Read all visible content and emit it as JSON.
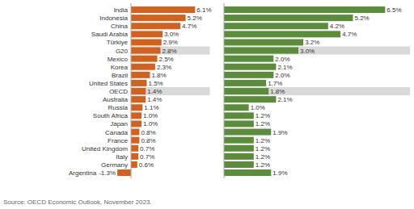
{
  "chart_data": {
    "type": "bar",
    "orientation": "horizontal",
    "categories": [
      "India",
      "Indonesia",
      "China",
      "Saudi Arabia",
      "Türkiye",
      "G20",
      "Mexico",
      "Korea",
      "Brazil",
      "United States",
      "OECD",
      "Australia",
      "Russia",
      "South Africa",
      "Japan",
      "Canada",
      "France",
      "United Kingdom",
      "Italy",
      "Germany",
      "Argentina"
    ],
    "series": [
      {
        "color": "#d4601e",
        "xlim": [
          -1.5,
          7.5
        ],
        "values": [
          6.1,
          5.2,
          4.7,
          3.0,
          2.9,
          2.8,
          2.5,
          2.3,
          1.8,
          1.5,
          1.4,
          1.4,
          1.1,
          1.0,
          1.0,
          0.8,
          0.8,
          0.7,
          0.7,
          0.6,
          -1.3
        ],
        "value_labels": [
          "6.1%",
          "5.2%",
          "4.7%",
          "3.0%",
          "2.9%",
          "2.8%",
          "2.5%",
          "2.3%",
          "1.8%",
          "1.5%",
          "1.4%",
          "1.4%",
          "1.1%",
          "1.0%",
          "1.0%",
          "0.8%",
          "0.8%",
          "0.7%",
          "0.7%",
          "0.6%",
          "-1.3%"
        ]
      },
      {
        "color": "#5b8c3b",
        "xlim": [
          0,
          7.5
        ],
        "values": [
          6.5,
          5.2,
          4.2,
          4.7,
          3.2,
          3.0,
          2.0,
          2.1,
          2.0,
          1.7,
          1.8,
          2.1,
          1.0,
          1.2,
          1.2,
          1.9,
          1.2,
          1.2,
          1.2,
          1.2,
          1.9
        ],
        "value_labels": [
          "6.5%",
          "5.2%",
          "4.2%",
          "4.7%",
          "3.2%",
          "3.0%",
          "2.0%",
          "2.1%",
          "2.0%",
          "1.7%",
          "1.8%",
          "2.1%",
          "1.0%",
          "1.2%",
          "1.2%",
          "1.9%",
          "1.2%",
          "1.2%",
          "1.2%",
          "1.2%",
          "1.9%"
        ]
      }
    ],
    "data_labels": true,
    "tick_labels": "y",
    "grid": false,
    "highlight": [
      5,
      10
    ],
    "source": "Source: OECD Economic Outlook, November 2023."
  }
}
